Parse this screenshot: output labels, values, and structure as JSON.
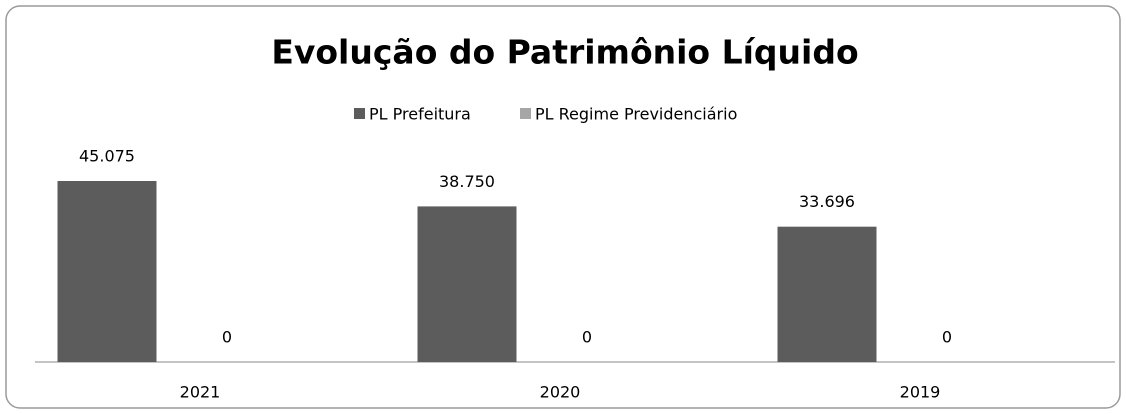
{
  "chart_data": {
    "type": "bar",
    "title": "Evolução do Patrimônio Líquido",
    "categories": [
      "2021",
      "2020",
      "2019"
    ],
    "series": [
      {
        "name": "PL Prefeitura",
        "color": "#5c5c5c",
        "values": [
          45075,
          38750,
          33696
        ],
        "value_labels": [
          "45.075",
          "38.750",
          "33.696"
        ]
      },
      {
        "name": "PL Regime Previdenciário",
        "color": "#a6a6a6",
        "values": [
          0,
          0,
          0
        ]
      }
    ]
  }
}
